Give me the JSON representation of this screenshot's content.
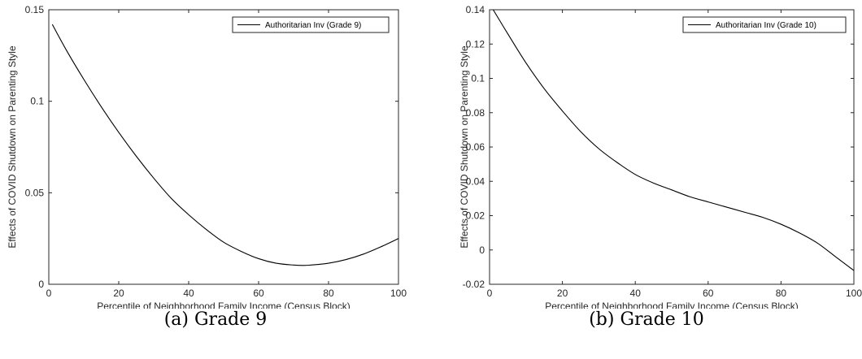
{
  "chart_data": [
    {
      "type": "line",
      "caption": "(a) Grade 9",
      "xlabel": "Percentile of Neighborhood Family Income (Census Block)",
      "ylabel": "Effects of COVID Shutdown on Parenting Style",
      "xlim": [
        0,
        100
      ],
      "ylim": [
        0,
        0.15
      ],
      "xticks": [
        0,
        20,
        40,
        60,
        80,
        100
      ],
      "xtick_labels": [
        "0",
        "20",
        "40",
        "60",
        "80",
        "100"
      ],
      "yticks": [
        0,
        0.05,
        0.1,
        0.15
      ],
      "ytick_labels": [
        "0",
        "0.05",
        "0.1",
        "0.15"
      ],
      "legend": {
        "position": "top-right",
        "entries": [
          "Authoritarian Inv (Grade 9)"
        ]
      },
      "grid": false,
      "series": [
        {
          "name": "Authoritarian Inv (Grade 9)",
          "x": [
            1,
            5,
            10,
            15,
            20,
            25,
            30,
            35,
            40,
            45,
            50,
            55,
            60,
            65,
            70,
            73,
            75,
            80,
            85,
            90,
            95,
            100
          ],
          "y": [
            0.142,
            0.128,
            0.112,
            0.097,
            0.083,
            0.07,
            0.058,
            0.047,
            0.038,
            0.03,
            0.023,
            0.018,
            0.014,
            0.0115,
            0.0105,
            0.0103,
            0.0105,
            0.0115,
            0.0135,
            0.0165,
            0.0205,
            0.025
          ]
        }
      ]
    },
    {
      "type": "line",
      "caption": "(b) Grade 10",
      "xlabel": "Percentile of Neighborhood Family Income (Census Block)",
      "ylabel": "Effects of COVID Shutdown on Parenting Style",
      "xlim": [
        0,
        100
      ],
      "ylim": [
        -0.02,
        0.14
      ],
      "xticks": [
        0,
        20,
        40,
        60,
        80,
        100
      ],
      "xtick_labels": [
        "0",
        "20",
        "40",
        "60",
        "80",
        "100"
      ],
      "yticks": [
        -0.02,
        0,
        0.02,
        0.04,
        0.06,
        0.08,
        0.1,
        0.12,
        0.14
      ],
      "ytick_labels": [
        "-0.02",
        "0",
        "0.02",
        "0.04",
        "0.06",
        "0.08",
        "0.1",
        "0.12",
        "0.14"
      ],
      "legend": {
        "position": "top-right",
        "entries": [
          "Authoritarian Inv (Grade 10)"
        ]
      },
      "grid": false,
      "series": [
        {
          "name": "Authoritarian Inv (Grade 10)",
          "x": [
            1,
            5,
            10,
            15,
            20,
            25,
            30,
            35,
            40,
            45,
            50,
            55,
            60,
            65,
            70,
            75,
            80,
            85,
            90,
            95,
            100
          ],
          "y": [
            0.14,
            0.126,
            0.109,
            0.094,
            0.081,
            0.069,
            0.059,
            0.051,
            0.044,
            0.039,
            0.035,
            0.031,
            0.028,
            0.025,
            0.022,
            0.019,
            0.015,
            0.01,
            0.004,
            -0.004,
            -0.012
          ]
        }
      ]
    }
  ]
}
